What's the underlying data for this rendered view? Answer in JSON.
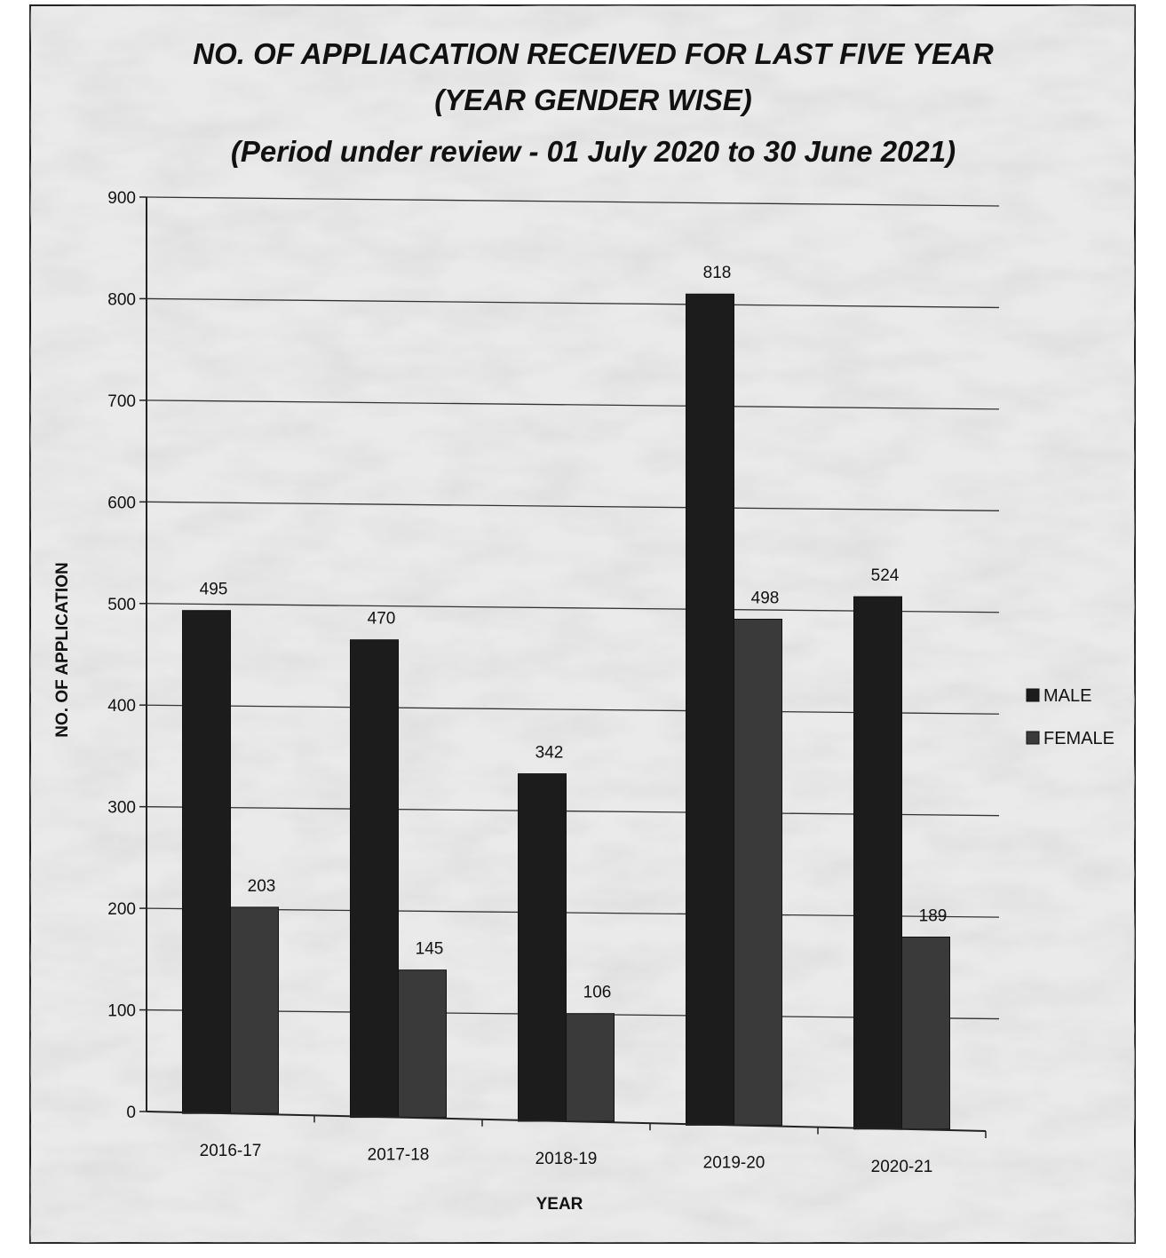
{
  "chart_data": {
    "type": "bar",
    "title_lines": [
      "NO. OF APPLIACATION RECEIVED FOR LAST FIVE YEAR",
      "(YEAR GENDER WISE)",
      "(Period under review - 01 July 2020 to 30 June 2021)"
    ],
    "xlabel": "YEAR",
    "ylabel": "NO. OF APPLICATION",
    "categories": [
      "2016-17",
      "2017-18",
      "2018-19",
      "2019-20",
      "2020-21"
    ],
    "series": [
      {
        "name": "MALE",
        "values": [
          495,
          470,
          342,
          818,
          524
        ],
        "color": "#1c1c1c"
      },
      {
        "name": "FEMALE",
        "values": [
          203,
          145,
          106,
          498,
          189
        ],
        "color": "#3a3a3a"
      }
    ],
    "ylim": [
      0,
      900
    ],
    "yticks": [
      "0",
      "100",
      "200",
      "300",
      "400",
      "500",
      "600",
      "700",
      "800",
      "900"
    ],
    "grid": true,
    "legend_position": "right"
  }
}
